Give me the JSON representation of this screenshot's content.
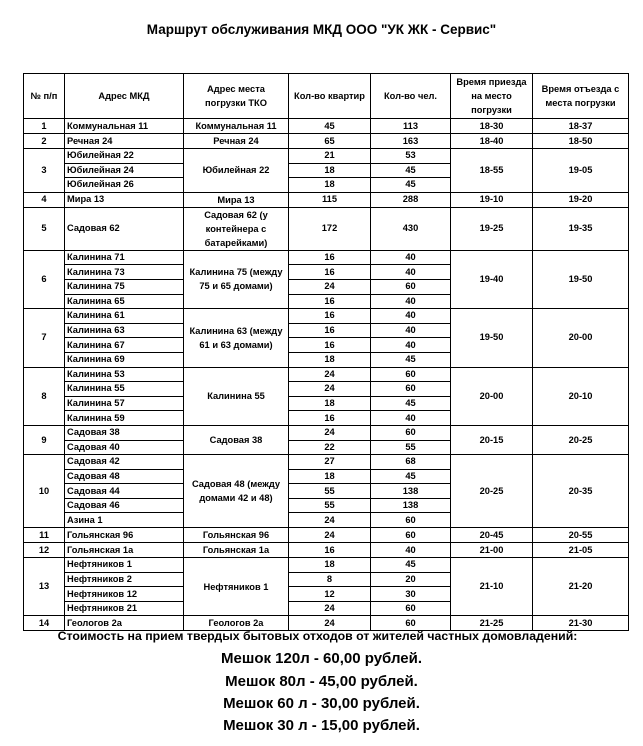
{
  "title": "Маршрут обслуживания МКД ООО \"УК ЖК - Сервис\"",
  "table": {
    "headers": [
      "№ п/п",
      "Адрес МКД",
      "Адрес места погрузки ТКО",
      "Кол-во квартир",
      "Кол-во чел.",
      "Время приезда на место погрузки",
      "Время отъезда с места погрузки"
    ],
    "groups": [
      {
        "num": "1",
        "site": "Коммунальная 11",
        "arrive": "18-30",
        "depart": "18-37",
        "houses": [
          {
            "addr": "Коммунальная 11",
            "flats": "45",
            "people": "113"
          }
        ]
      },
      {
        "num": "2",
        "site": "Речная 24",
        "arrive": "18-40",
        "depart": "18-50",
        "houses": [
          {
            "addr": "Речная 24",
            "flats": "65",
            "people": "163"
          }
        ]
      },
      {
        "num": "3",
        "site": "Юбилейная 22",
        "arrive": "18-55",
        "depart": "19-05",
        "houses": [
          {
            "addr": "Юбилейная 22",
            "flats": "21",
            "people": "53"
          },
          {
            "addr": "Юбилейная 24",
            "flats": "18",
            "people": "45"
          },
          {
            "addr": "Юбилейная 26",
            "flats": "18",
            "people": "45"
          }
        ]
      },
      {
        "num": "4",
        "site": "Мира 13",
        "arrive": "19-10",
        "depart": "19-20",
        "houses": [
          {
            "addr": "Мира 13",
            "flats": "115",
            "people": "288"
          }
        ]
      },
      {
        "num": "5",
        "site": "Садовая 62 (у контейнера с батарейками)",
        "arrive": "19-25",
        "depart": "19-35",
        "houses": [
          {
            "addr": "Садовая 62",
            "flats": "172",
            "people": "430"
          }
        ]
      },
      {
        "num": "6",
        "site": "Калинина 75 (между 75 и 65 домами)",
        "arrive": "19-40",
        "depart": "19-50",
        "houses": [
          {
            "addr": "Калинина 71",
            "flats": "16",
            "people": "40"
          },
          {
            "addr": "Калинина 73",
            "flats": "16",
            "people": "40"
          },
          {
            "addr": "Калинина 75",
            "flats": "24",
            "people": "60"
          },
          {
            "addr": "Калинина 65",
            "flats": "16",
            "people": "40"
          }
        ]
      },
      {
        "num": "7",
        "site": "Калинина 63 (между 61 и 63 домами)",
        "arrive": "19-50",
        "depart": "20-00",
        "houses": [
          {
            "addr": "Калинина 61",
            "flats": "16",
            "people": "40"
          },
          {
            "addr": "Калинина 63",
            "flats": "16",
            "people": "40"
          },
          {
            "addr": "Калинина 67",
            "flats": "16",
            "people": "40"
          },
          {
            "addr": "Калинина 69",
            "flats": "18",
            "people": "45"
          }
        ]
      },
      {
        "num": "8",
        "site": "Калинина 55",
        "arrive": "20-00",
        "depart": "20-10",
        "houses": [
          {
            "addr": "Калинина 53",
            "flats": "24",
            "people": "60"
          },
          {
            "addr": "Калинина 55",
            "flats": "24",
            "people": "60"
          },
          {
            "addr": "Калинина 57",
            "flats": "18",
            "people": "45"
          },
          {
            "addr": "Калинина 59",
            "flats": "16",
            "people": "40"
          }
        ]
      },
      {
        "num": "9",
        "site": "Садовая 38",
        "arrive": "20-15",
        "depart": "20-25",
        "houses": [
          {
            "addr": "Садовая 38",
            "flats": "24",
            "people": "60"
          },
          {
            "addr": "Садовая 40",
            "flats": "22",
            "people": "55"
          }
        ]
      },
      {
        "num": "10",
        "site": "Садовая 48 (между домами 42 и 48)",
        "arrive": "20-25",
        "depart": "20-35",
        "houses": [
          {
            "addr": "Садовая 42",
            "flats": "27",
            "people": "68"
          },
          {
            "addr": "Садовая 48",
            "flats": "18",
            "people": "45"
          },
          {
            "addr": "Садовая 44",
            "flats": "55",
            "people": "138"
          },
          {
            "addr": "Садовая 46",
            "flats": "55",
            "people": "138"
          },
          {
            "addr": "Азина 1",
            "flats": "24",
            "people": "60"
          }
        ]
      },
      {
        "num": "11",
        "site": "Гольянская 96",
        "arrive": "20-45",
        "depart": "20-55",
        "houses": [
          {
            "addr": "Гольянская 96",
            "flats": "24",
            "people": "60"
          }
        ]
      },
      {
        "num": "12",
        "site": "Гольянская 1а",
        "arrive": "21-00",
        "depart": "21-05",
        "houses": [
          {
            "addr": "Гольянская 1а",
            "flats": "16",
            "people": "40"
          }
        ]
      },
      {
        "num": "13",
        "site": "Нефтяников 1",
        "arrive": "21-10",
        "depart": "21-20",
        "houses": [
          {
            "addr": "Нефтяников 1",
            "flats": "18",
            "people": "45"
          },
          {
            "addr": "Нефтяников 2",
            "flats": "8",
            "people": "20"
          },
          {
            "addr": "Нефтяников 12",
            "flats": "12",
            "people": "30"
          },
          {
            "addr": "Нефтяников 21",
            "flats": "24",
            "people": "60"
          }
        ]
      },
      {
        "num": "14",
        "site": "Геологов 2а",
        "arrive": "21-25",
        "depart": "21-30",
        "houses": [
          {
            "addr": "Геологов 2а",
            "flats": "24",
            "people": "60"
          }
        ]
      }
    ]
  },
  "footer": {
    "note": "Стоимость на прием твердых бытовых отходов от жителей частных домовладений:",
    "prices": [
      "Мешок 120л - 60,00 рублей.",
      "Мешок 80л - 45,00 рублей.",
      "Мешок 60 л - 30,00 рублей.",
      "Мешок 30 л - 15,00 рублей."
    ]
  }
}
